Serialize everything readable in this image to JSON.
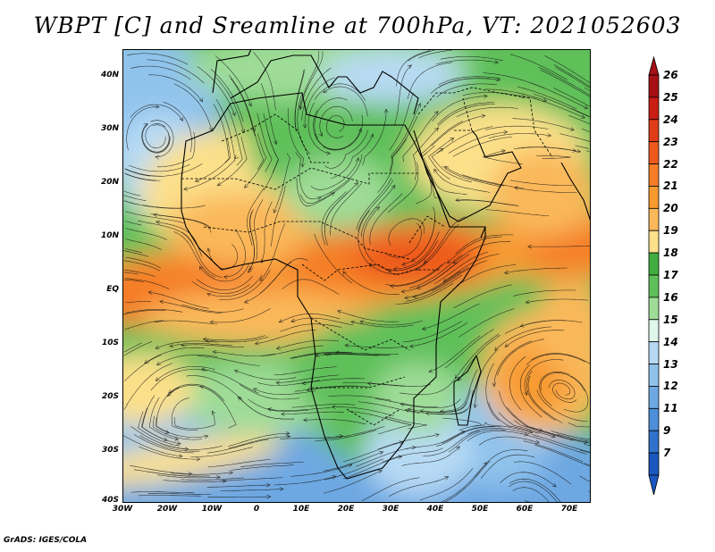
{
  "title": "WBPT [C] and Sreamline at 700hPa, VT: 2021052603",
  "credit": "GrADS: IGES/COLA",
  "map": {
    "lat_labels": [
      "40N",
      "30N",
      "20N",
      "10N",
      "EQ",
      "10S",
      "20S",
      "30S",
      "40S"
    ],
    "lon_labels": [
      "30W",
      "20W",
      "10W",
      "0",
      "10E",
      "20E",
      "30E",
      "40E",
      "50E",
      "60E",
      "70E"
    ],
    "extent": {
      "lon": [
        -30,
        75
      ],
      "lat": [
        -40,
        45
      ]
    },
    "fields": [
      "wet-bulb potential temperature shading",
      "700hPa streamlines",
      "coastlines and country borders"
    ]
  },
  "colorbar": {
    "labels": [
      "26",
      "25",
      "24",
      "23",
      "22",
      "21",
      "20",
      "19",
      "18",
      "17",
      "16",
      "15",
      "14",
      "13",
      "12",
      "11",
      "9",
      "7"
    ],
    "colors": [
      "#a50f15",
      "#c81e14",
      "#e03c16",
      "#ee5a1c",
      "#f57d26",
      "#f79a30",
      "#fab85a",
      "#fce08a",
      "#3fae3f",
      "#5fc05a",
      "#9fdc97",
      "#dff6ea",
      "#b7daf4",
      "#90c3ec",
      "#6ea8e2",
      "#4d8fd8",
      "#2f72cc",
      "#1a58bf"
    ]
  }
}
